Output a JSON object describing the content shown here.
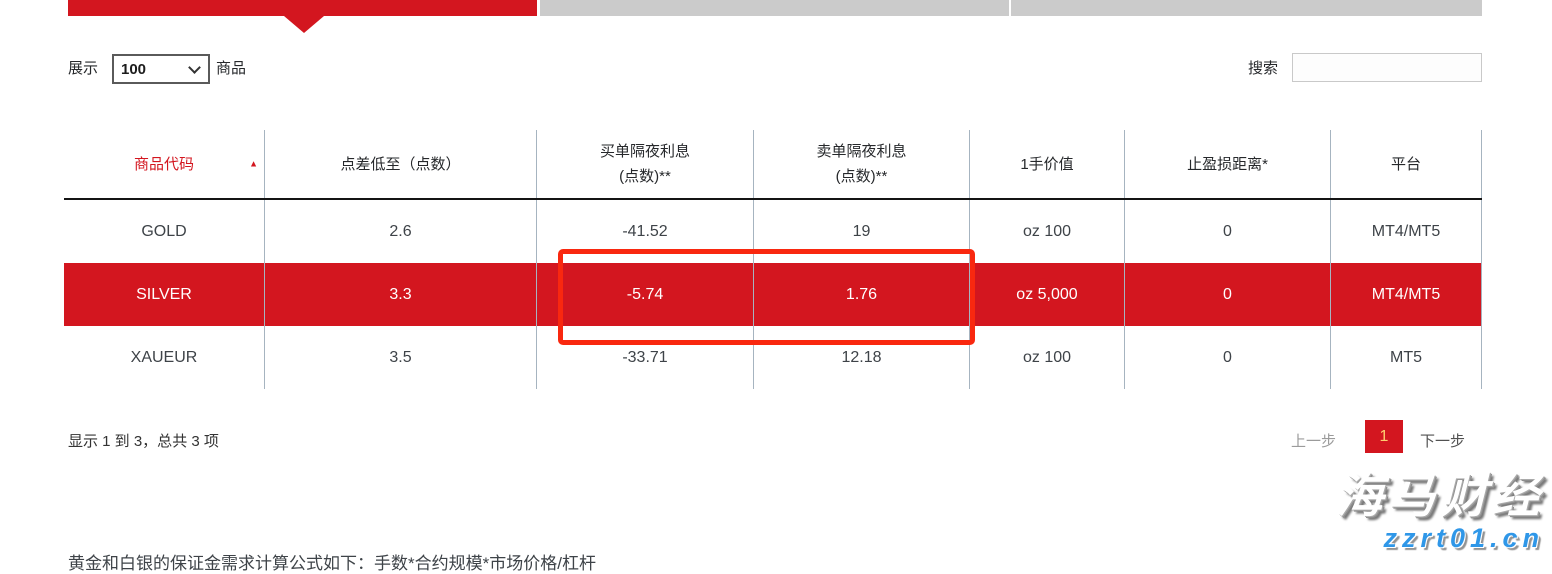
{
  "toolbar": {
    "show_label": "展示",
    "show_value": "100",
    "show_suffix": "商品",
    "search_label": "搜索",
    "search_value": ""
  },
  "icons": {
    "sort_asc": "▲"
  },
  "table": {
    "headers": [
      {
        "line1": "商品代码",
        "line2": ""
      },
      {
        "line1": "点差低至（点数）",
        "line2": ""
      },
      {
        "line1": "买单隔夜利息",
        "line2": "(点数)**"
      },
      {
        "line1": "卖单隔夜利息",
        "line2": "(点数)**"
      },
      {
        "line1": "1手价值",
        "line2": ""
      },
      {
        "line1": "止盈损距离*",
        "line2": ""
      },
      {
        "line1": "平台",
        "line2": ""
      }
    ],
    "rows": [
      {
        "code": "GOLD",
        "spread": "2.6",
        "buy_swap": "-41.52",
        "sell_swap": "19",
        "lot_value": "oz 100",
        "sl_distance": "0",
        "platform": "MT4/MT5"
      },
      {
        "code": "SILVER",
        "spread": "3.3",
        "buy_swap": "-5.74",
        "sell_swap": "1.76",
        "lot_value": "oz 5,000",
        "sl_distance": "0",
        "platform": "MT4/MT5"
      },
      {
        "code": "XAUEUR",
        "spread": "3.5",
        "buy_swap": "-33.71",
        "sell_swap": "12.18",
        "lot_value": "oz 100",
        "sl_distance": "0",
        "platform": "MT5"
      }
    ]
  },
  "footer": {
    "info": "显示 1 到 3，总共 3 项",
    "prev_label": "上一步",
    "page_number": "1",
    "next_label": "下一步",
    "note": "黄金和白银的保证金需求计算公式如下：手数*合约规模*市场价格/杠杆"
  },
  "watermark": {
    "title": "海马财经",
    "site": "zzrt01.cn"
  },
  "colors": {
    "brand_red": "#d3161f",
    "annotation_red": "#f9280f",
    "inactive_tab_gray": "#cbcbcb",
    "column_separator": "#a6b4c0",
    "page_digit_gold": "#ffce70",
    "watermark_blue": "#2f97e8"
  }
}
